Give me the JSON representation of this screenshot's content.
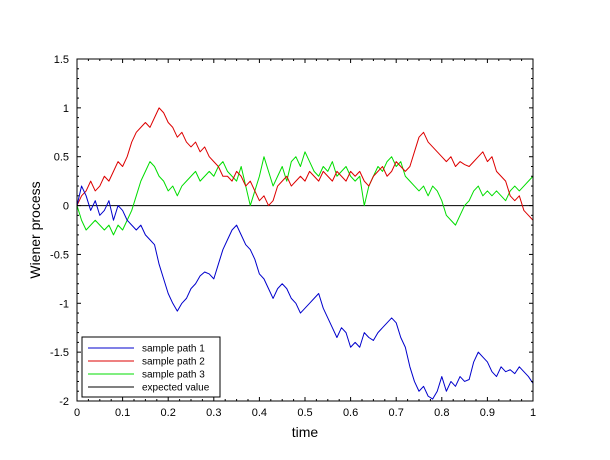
{
  "chart_data": {
    "type": "line",
    "title": "",
    "xlabel": "time",
    "ylabel": "Wiener process",
    "xlim": [
      0,
      1
    ],
    "ylim": [
      -2,
      1.5
    ],
    "xticks": [
      "0",
      "0.1",
      "0.2",
      "0.3",
      "0.4",
      "0.5",
      "0.6",
      "0.7",
      "0.8",
      "0.9",
      "1"
    ],
    "yticks": [
      "-2",
      "-1.5",
      "-1",
      "-0.5",
      "0",
      "0.5",
      "1",
      "1.5"
    ],
    "grid": false,
    "legend_position": "bottom-left",
    "series": [
      {
        "name": "sample path 1",
        "color": "#0000cc",
        "x": [
          0,
          0.01,
          0.02,
          0.03,
          0.04,
          0.05,
          0.06,
          0.07,
          0.08,
          0.09,
          0.1,
          0.11,
          0.12,
          0.13,
          0.14,
          0.15,
          0.16,
          0.17,
          0.18,
          0.19,
          0.2,
          0.21,
          0.22,
          0.23,
          0.24,
          0.25,
          0.26,
          0.27,
          0.28,
          0.29,
          0.3,
          0.31,
          0.32,
          0.33,
          0.34,
          0.35,
          0.36,
          0.37,
          0.38,
          0.39,
          0.4,
          0.41,
          0.42,
          0.43,
          0.44,
          0.45,
          0.46,
          0.47,
          0.48,
          0.49,
          0.5,
          0.51,
          0.52,
          0.53,
          0.54,
          0.55,
          0.56,
          0.57,
          0.58,
          0.59,
          0.6,
          0.61,
          0.62,
          0.63,
          0.64,
          0.65,
          0.66,
          0.67,
          0.68,
          0.69,
          0.7,
          0.71,
          0.72,
          0.73,
          0.74,
          0.75,
          0.76,
          0.77,
          0.78,
          0.79,
          0.8,
          0.81,
          0.82,
          0.83,
          0.84,
          0.85,
          0.86,
          0.87,
          0.88,
          0.89,
          0.9,
          0.91,
          0.92,
          0.93,
          0.94,
          0.95,
          0.96,
          0.97,
          0.98,
          0.99,
          1
        ],
        "values": [
          0,
          0.2,
          0.1,
          -0.05,
          0.05,
          -0.1,
          -0.05,
          0.05,
          -0.15,
          0,
          -0.05,
          -0.15,
          -0.2,
          -0.25,
          -0.2,
          -0.3,
          -0.35,
          -0.4,
          -0.6,
          -0.75,
          -0.9,
          -1.0,
          -1.08,
          -1.0,
          -0.95,
          -0.85,
          -0.8,
          -0.72,
          -0.68,
          -0.7,
          -0.75,
          -0.6,
          -0.45,
          -0.35,
          -0.25,
          -0.2,
          -0.3,
          -0.4,
          -0.45,
          -0.55,
          -0.7,
          -0.75,
          -0.85,
          -0.95,
          -0.85,
          -0.8,
          -0.85,
          -0.95,
          -1.0,
          -1.1,
          -1.05,
          -1.0,
          -0.95,
          -0.9,
          -1.05,
          -1.15,
          -1.25,
          -1.35,
          -1.25,
          -1.3,
          -1.45,
          -1.4,
          -1.45,
          -1.3,
          -1.35,
          -1.38,
          -1.3,
          -1.25,
          -1.2,
          -1.15,
          -1.2,
          -1.35,
          -1.45,
          -1.65,
          -1.8,
          -1.9,
          -1.85,
          -1.95,
          -1.98,
          -1.9,
          -1.75,
          -1.9,
          -1.8,
          -1.85,
          -1.75,
          -1.8,
          -1.78,
          -1.6,
          -1.5,
          -1.55,
          -1.6,
          -1.7,
          -1.75,
          -1.65,
          -1.7,
          -1.68,
          -1.72,
          -1.65,
          -1.7,
          -1.75,
          -1.82
        ]
      },
      {
        "name": "sample path 2",
        "color": "#dd0000",
        "x": [
          0,
          0.01,
          0.02,
          0.03,
          0.04,
          0.05,
          0.06,
          0.07,
          0.08,
          0.09,
          0.1,
          0.11,
          0.12,
          0.13,
          0.14,
          0.15,
          0.16,
          0.17,
          0.18,
          0.19,
          0.2,
          0.21,
          0.22,
          0.23,
          0.24,
          0.25,
          0.26,
          0.27,
          0.28,
          0.29,
          0.3,
          0.31,
          0.32,
          0.33,
          0.34,
          0.35,
          0.36,
          0.37,
          0.38,
          0.39,
          0.4,
          0.41,
          0.42,
          0.43,
          0.44,
          0.45,
          0.46,
          0.47,
          0.48,
          0.49,
          0.5,
          0.51,
          0.52,
          0.53,
          0.54,
          0.55,
          0.56,
          0.57,
          0.58,
          0.59,
          0.6,
          0.61,
          0.62,
          0.63,
          0.64,
          0.65,
          0.66,
          0.67,
          0.68,
          0.69,
          0.7,
          0.71,
          0.72,
          0.73,
          0.74,
          0.75,
          0.76,
          0.77,
          0.78,
          0.79,
          0.8,
          0.81,
          0.82,
          0.83,
          0.84,
          0.85,
          0.86,
          0.87,
          0.88,
          0.89,
          0.9,
          0.91,
          0.92,
          0.93,
          0.94,
          0.95,
          0.96,
          0.97,
          0.98,
          0.99,
          1
        ],
        "values": [
          0,
          0.1,
          0.15,
          0.25,
          0.15,
          0.2,
          0.3,
          0.25,
          0.35,
          0.45,
          0.4,
          0.5,
          0.65,
          0.75,
          0.8,
          0.85,
          0.8,
          0.9,
          1.0,
          0.95,
          0.85,
          0.8,
          0.7,
          0.75,
          0.65,
          0.6,
          0.65,
          0.55,
          0.6,
          0.5,
          0.45,
          0.4,
          0.3,
          0.3,
          0.25,
          0.35,
          0.3,
          0.2,
          0.25,
          0.15,
          0.05,
          0.1,
          0.0,
          0.05,
          0.2,
          0.25,
          0.3,
          0.2,
          0.25,
          0.3,
          0.25,
          0.35,
          0.3,
          0.25,
          0.35,
          0.3,
          0.25,
          0.35,
          0.3,
          0.25,
          0.35,
          0.3,
          0.35,
          0.25,
          0.2,
          0.3,
          0.35,
          0.4,
          0.3,
          0.35,
          0.45,
          0.4,
          0.35,
          0.4,
          0.55,
          0.7,
          0.75,
          0.65,
          0.6,
          0.55,
          0.5,
          0.45,
          0.5,
          0.4,
          0.45,
          0.42,
          0.4,
          0.45,
          0.5,
          0.55,
          0.45,
          0.5,
          0.35,
          0.3,
          0.25,
          0.1,
          0.05,
          0.1,
          -0.05,
          -0.1,
          -0.15
        ]
      },
      {
        "name": "sample path 3",
        "color": "#00dd00",
        "x": [
          0,
          0.01,
          0.02,
          0.03,
          0.04,
          0.05,
          0.06,
          0.07,
          0.08,
          0.09,
          0.1,
          0.11,
          0.12,
          0.13,
          0.14,
          0.15,
          0.16,
          0.17,
          0.18,
          0.19,
          0.2,
          0.21,
          0.22,
          0.23,
          0.24,
          0.25,
          0.26,
          0.27,
          0.28,
          0.29,
          0.3,
          0.31,
          0.32,
          0.33,
          0.34,
          0.35,
          0.36,
          0.37,
          0.38,
          0.39,
          0.4,
          0.41,
          0.42,
          0.43,
          0.44,
          0.45,
          0.46,
          0.47,
          0.48,
          0.49,
          0.5,
          0.51,
          0.52,
          0.53,
          0.54,
          0.55,
          0.56,
          0.57,
          0.58,
          0.59,
          0.6,
          0.61,
          0.62,
          0.63,
          0.64,
          0.65,
          0.66,
          0.67,
          0.68,
          0.69,
          0.7,
          0.71,
          0.72,
          0.73,
          0.74,
          0.75,
          0.76,
          0.77,
          0.78,
          0.79,
          0.8,
          0.81,
          0.82,
          0.83,
          0.84,
          0.85,
          0.86,
          0.87,
          0.88,
          0.89,
          0.9,
          0.91,
          0.92,
          0.93,
          0.94,
          0.95,
          0.96,
          0.97,
          0.98,
          0.99,
          1
        ],
        "values": [
          0,
          -0.15,
          -0.25,
          -0.2,
          -0.15,
          -0.2,
          -0.25,
          -0.2,
          -0.3,
          -0.2,
          -0.25,
          -0.15,
          -0.05,
          0.1,
          0.25,
          0.35,
          0.45,
          0.4,
          0.3,
          0.25,
          0.15,
          0.2,
          0.1,
          0.2,
          0.25,
          0.3,
          0.35,
          0.25,
          0.3,
          0.35,
          0.3,
          0.4,
          0.45,
          0.35,
          0.3,
          0.25,
          0.4,
          0.2,
          0.0,
          0.15,
          0.3,
          0.5,
          0.35,
          0.2,
          0.3,
          0.4,
          0.25,
          0.45,
          0.5,
          0.4,
          0.55,
          0.45,
          0.35,
          0.3,
          0.4,
          0.35,
          0.45,
          0.3,
          0.35,
          0.4,
          0.3,
          0.25,
          0.3,
          0.0,
          0.2,
          0.3,
          0.4,
          0.35,
          0.45,
          0.5,
          0.4,
          0.45,
          0.3,
          0.25,
          0.2,
          0.15,
          0.2,
          0.1,
          0.2,
          0.15,
          0.05,
          -0.1,
          -0.15,
          -0.2,
          -0.1,
          0.0,
          0.05,
          0.15,
          0.2,
          0.1,
          0.15,
          0.1,
          0.15,
          0.1,
          0.05,
          0.15,
          0.2,
          0.15,
          0.2,
          0.25,
          0.3
        ]
      },
      {
        "name": "expected value",
        "color": "#000000",
        "x": [
          0,
          1
        ],
        "values": [
          0,
          0
        ]
      }
    ]
  }
}
